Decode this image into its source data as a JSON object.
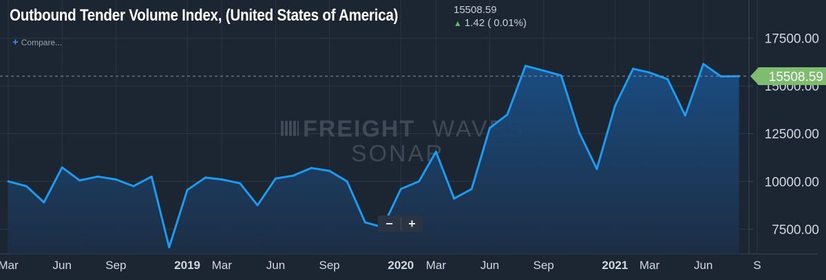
{
  "header": {
    "title": "Outbound Tender Volume Index, (United States of America)",
    "price": "15508.59",
    "change_arrow": "▲",
    "change": "1.42 ( 0.01%)",
    "compare_plus": "+",
    "compare_label": "Compare..."
  },
  "zoom": {
    "minus": "−",
    "plus": "+"
  },
  "watermark": {
    "line1_a": "FREIGHT",
    "line1_b": "WAVES",
    "line2": "SONAR"
  },
  "colors": {
    "background": "#1c2633",
    "line": "#1e9bf0",
    "area_top": "#1a4f86",
    "last_value_label": "#7ebc6f",
    "grid": "#2d3947"
  },
  "chart_data": {
    "type": "area",
    "title": "Outbound Tender Volume Index, (United States of America)",
    "last_value": 15508.59,
    "last_value_label": "15508.59",
    "ylim": [
      6200,
      19500
    ],
    "y_ticks": [
      7500,
      10000,
      12500,
      15000,
      17500
    ],
    "y_tick_labels": [
      "7500.00",
      "10000.00",
      "12500.00",
      "15000.00",
      "17500.00"
    ],
    "xlim": [
      "2018-03-01",
      "2021-09-01"
    ],
    "x_ticks": [
      {
        "date": "2018-03-01",
        "label": "Mar",
        "bold": false
      },
      {
        "date": "2018-06-01",
        "label": "Jun",
        "bold": false
      },
      {
        "date": "2018-09-01",
        "label": "Sep",
        "bold": false
      },
      {
        "date": "2019-01-01",
        "label": "2019",
        "bold": true
      },
      {
        "date": "2019-03-01",
        "label": "Mar",
        "bold": false
      },
      {
        "date": "2019-06-01",
        "label": "Jun",
        "bold": false
      },
      {
        "date": "2019-09-01",
        "label": "Sep",
        "bold": false
      },
      {
        "date": "2020-01-01",
        "label": "2020",
        "bold": true
      },
      {
        "date": "2020-03-01",
        "label": "Mar",
        "bold": false
      },
      {
        "date": "2020-06-01",
        "label": "Jun",
        "bold": false
      },
      {
        "date": "2020-09-01",
        "label": "Sep",
        "bold": false
      },
      {
        "date": "2021-01-01",
        "label": "2021",
        "bold": true
      },
      {
        "date": "2021-03-01",
        "label": "Mar",
        "bold": false
      },
      {
        "date": "2021-06-01",
        "label": "Jun",
        "bold": false
      },
      {
        "date": "2021-09-01",
        "label": "S",
        "bold": false
      }
    ],
    "grid": true,
    "series": [
      {
        "x": [
          "2018-03-01",
          "2018-04-01",
          "2018-05-01",
          "2018-06-01",
          "2018-07-01",
          "2018-08-01",
          "2018-09-01",
          "2018-10-01",
          "2018-11-01",
          "2018-12-01",
          "2019-01-01",
          "2019-02-01",
          "2019-03-01",
          "2019-04-01",
          "2019-05-01",
          "2019-06-01",
          "2019-07-01",
          "2019-08-01",
          "2019-09-01",
          "2019-10-01",
          "2019-11-01",
          "2019-12-01",
          "2020-01-01",
          "2020-02-01",
          "2020-03-01",
          "2020-04-01",
          "2020-05-01",
          "2020-06-01",
          "2020-07-01",
          "2020-08-01",
          "2020-09-01",
          "2020-10-01",
          "2020-11-01",
          "2020-12-01",
          "2021-01-01",
          "2021-02-01",
          "2021-03-01",
          "2021-04-01",
          "2021-05-01",
          "2021-06-01",
          "2021-07-01",
          "2021-08-01"
        ],
        "y": [
          10000,
          9750,
          8900,
          10730,
          10050,
          10250,
          10100,
          9750,
          10250,
          6550,
          9550,
          10200,
          10100,
          9900,
          8750,
          10150,
          10300,
          10700,
          10550,
          10000,
          7850,
          7600,
          9600,
          10000,
          11550,
          9100,
          9600,
          12800,
          13500,
          16050,
          15800,
          15550,
          12550,
          10650,
          13950,
          15900,
          15700,
          15350,
          13450,
          16150,
          15500,
          15510
        ]
      }
    ]
  }
}
